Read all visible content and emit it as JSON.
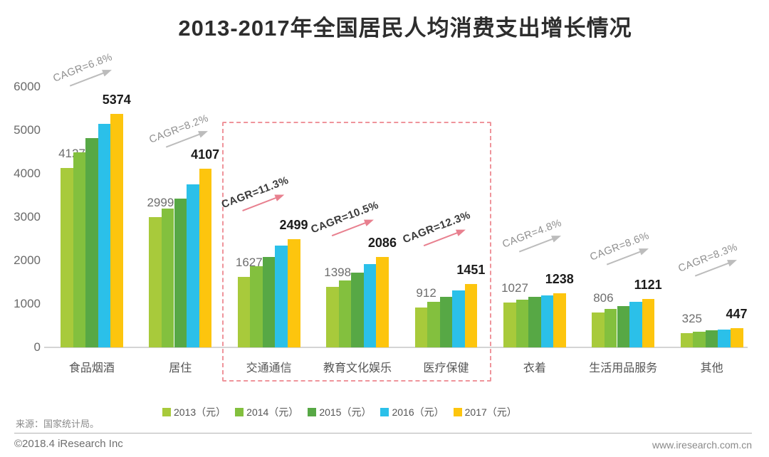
{
  "chart_data": {
    "type": "bar",
    "title": "2013-2017年全国居民人均消费支出增长情况",
    "unit": "元",
    "categories": [
      "食品烟酒",
      "居住",
      "交通通信",
      "教育文化娱乐",
      "医疗保健",
      "衣着",
      "生活用品服务",
      "其他"
    ],
    "series": [
      {
        "name": "2013（元）",
        "color": "#a8ca3b",
        "values": [
          4127,
          2999,
          1627,
          1398,
          912,
          1027,
          806,
          325
        ]
      },
      {
        "name": "2014（元）",
        "color": "#83c03e",
        "values": [
          4494,
          3201,
          1869,
          1536,
          1045,
          1099,
          890,
          358
        ]
      },
      {
        "name": "2015（元）",
        "color": "#57a845",
        "values": [
          4814,
          3419,
          2087,
          1723,
          1165,
          1164,
          951,
          389
        ]
      },
      {
        "name": "2016（元）",
        "color": "#2bc0e9",
        "values": [
          5151,
          3746,
          2338,
          1915,
          1307,
          1203,
          1044,
          406
        ]
      },
      {
        "name": "2017（元）",
        "color": "#fdc50e",
        "values": [
          5374,
          4107,
          2499,
          2086,
          1451,
          1238,
          1121,
          447
        ]
      }
    ],
    "labeled_first_year_values": [
      4127,
      2999,
      1627,
      1398,
      912,
      1027,
      806,
      325
    ],
    "labeled_last_year_values": [
      5374,
      4107,
      2499,
      2086,
      1451,
      1238,
      1121,
      447
    ],
    "cagr_labels": [
      "CAGR=6.8%",
      "CAGR=8.2%",
      "CAGR=11.3%",
      "CAGR=10.5%",
      "CAGR=12.3%",
      "CAGR=4.8%",
      "CAGR=8.6%",
      "CAGR=8.3%"
    ],
    "highlighted_category_indexes": [
      2,
      3,
      4
    ],
    "highlighted_categories": [
      "交通通信",
      "教育文化娱乐",
      "医疗保健"
    ],
    "ylim": [
      0,
      6000
    ],
    "yticks": [
      0,
      1000,
      2000,
      3000,
      4000,
      5000,
      6000
    ],
    "grid": false,
    "legend_position": "bottom"
  },
  "colors": {
    "highlight_box": "#ef949b",
    "cagr_text_gray": "#8f8f8f",
    "cagr_text_dark": "#3a3a3a",
    "arrow_gray": "#bcbcbc",
    "arrow_pink": "#e8808f"
  },
  "footer": {
    "source": "来源：国家统计局。",
    "copyright": "©2018.4 iResearch Inc",
    "website": "www.iresearch.com.cn"
  }
}
